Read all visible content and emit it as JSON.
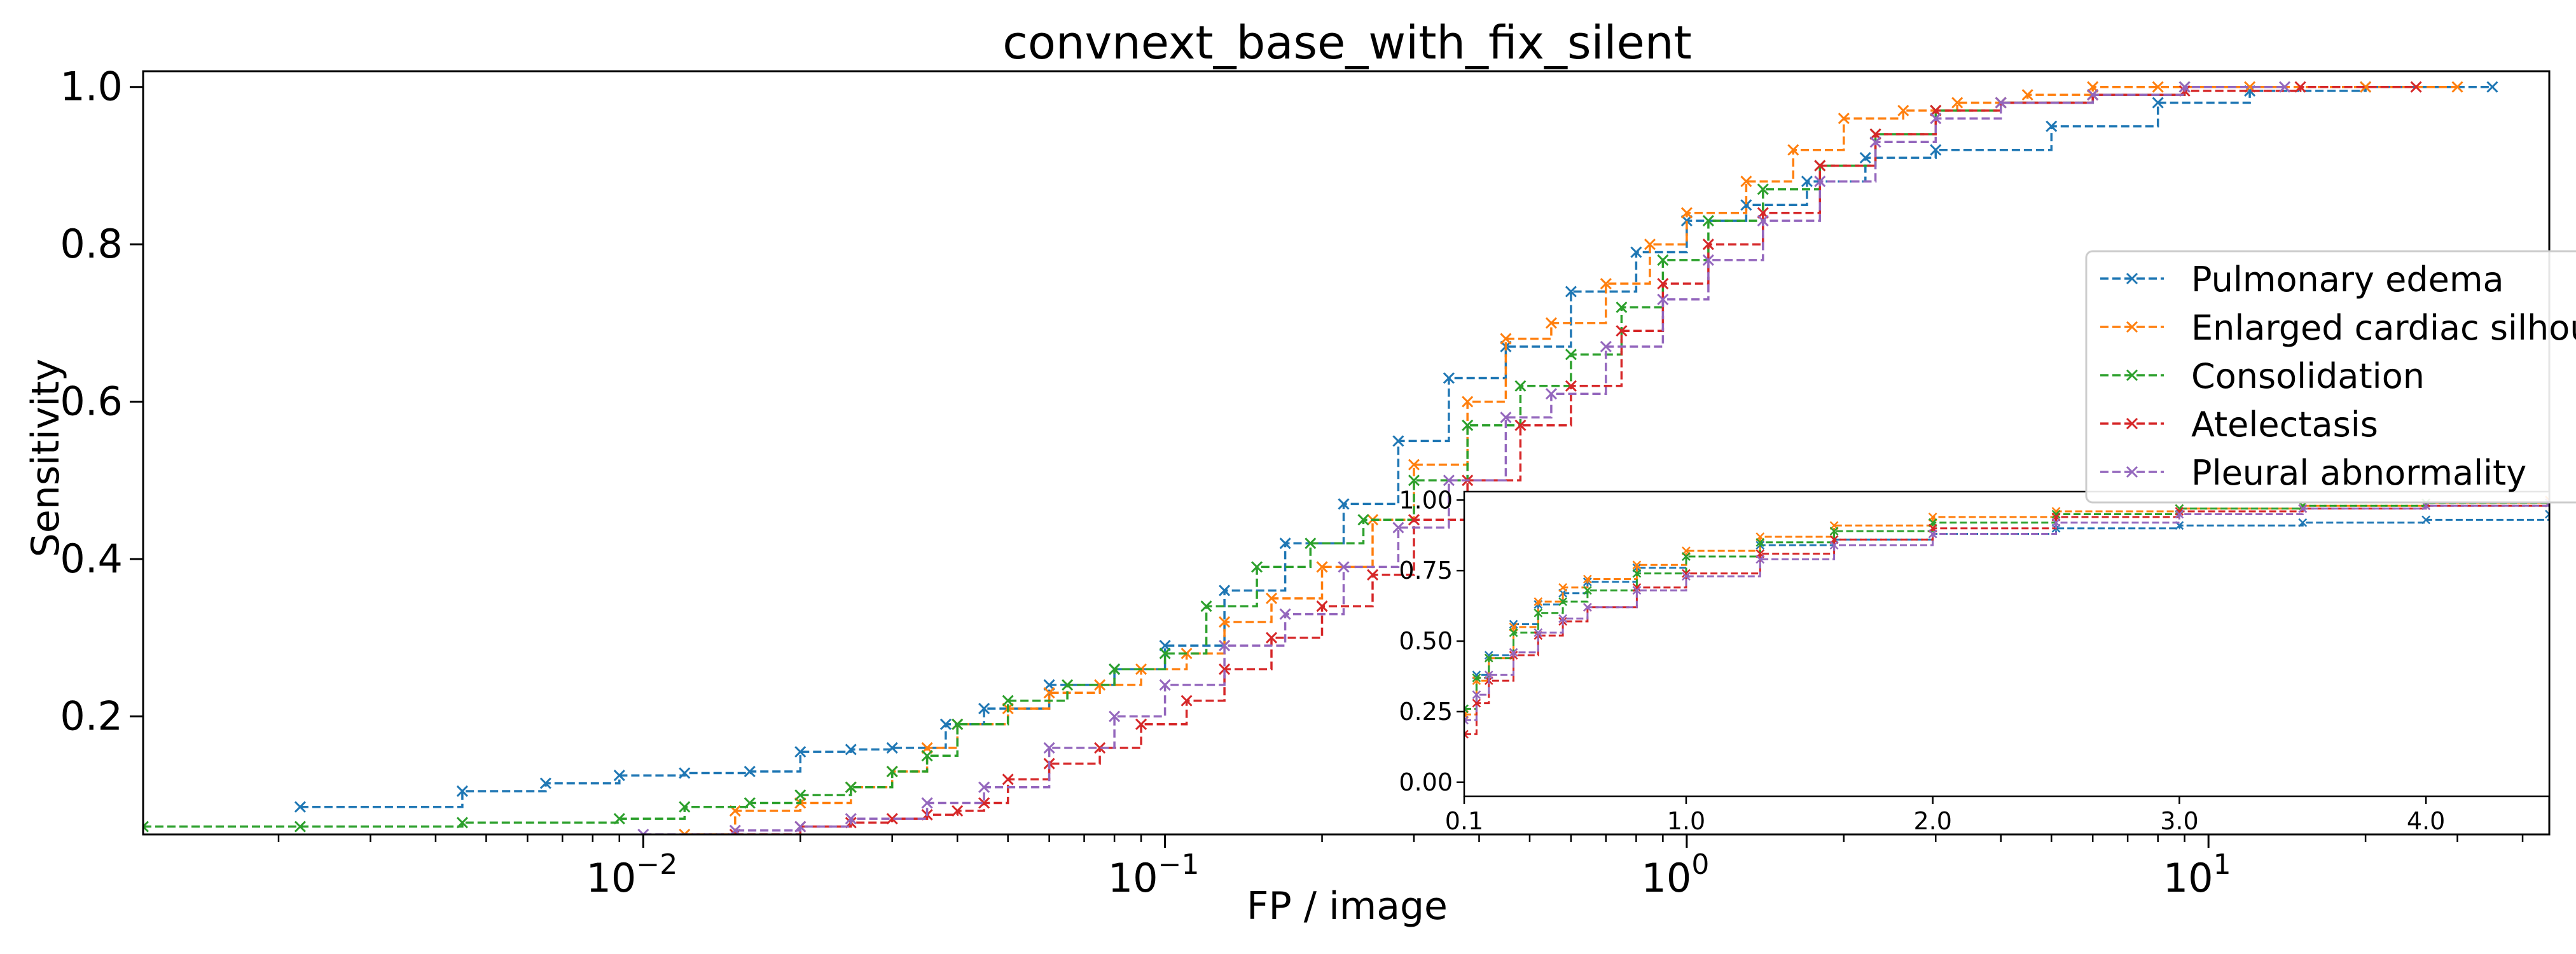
{
  "chart_data": [
    {
      "type": "line",
      "title": "convnext_base_with_fix_silent",
      "xlabel": "FP / image",
      "ylabel": "Sensitivity",
      "xscale": "log",
      "xlim": [
        0.0011,
        45
      ],
      "ylim": [
        0.05,
        1.02
      ],
      "x_ticks": [
        {
          "value": 0.01,
          "base": "10",
          "exp": "−2"
        },
        {
          "value": 0.1,
          "base": "10",
          "exp": "−1"
        },
        {
          "value": 1,
          "base": "10",
          "exp": "0"
        },
        {
          "value": 10,
          "base": "10",
          "exp": "1"
        }
      ],
      "y_ticks": [
        "0.2",
        "0.4",
        "0.6",
        "0.8",
        "1.0"
      ],
      "legend_position": "right",
      "series": [
        {
          "name": "Pulmonary edema",
          "color": "#1f77b4",
          "x": [
            0.0022,
            0.0045,
            0.0065,
            0.009,
            0.012,
            0.016,
            0.02,
            0.025,
            0.03,
            0.038,
            0.045,
            0.06,
            0.08,
            0.1,
            0.13,
            0.17,
            0.22,
            0.28,
            0.35,
            0.45,
            0.6,
            0.8,
            1.0,
            1.3,
            1.7,
            2.2,
            3.0,
            5.0,
            8.0,
            12.0,
            20.0,
            35.0
          ],
          "y": [
            0.085,
            0.105,
            0.115,
            0.125,
            0.128,
            0.13,
            0.155,
            0.158,
            0.16,
            0.19,
            0.21,
            0.24,
            0.26,
            0.29,
            0.36,
            0.42,
            0.47,
            0.55,
            0.63,
            0.67,
            0.74,
            0.79,
            0.83,
            0.85,
            0.88,
            0.91,
            0.92,
            0.95,
            0.98,
            0.995,
            1.0,
            1.0
          ]
        },
        {
          "name": "Enlarged cardiac silhouette",
          "color": "#ff7f0e",
          "x": [
            0.012,
            0.015,
            0.02,
            0.025,
            0.03,
            0.035,
            0.04,
            0.05,
            0.06,
            0.075,
            0.09,
            0.11,
            0.13,
            0.16,
            0.2,
            0.25,
            0.3,
            0.38,
            0.45,
            0.55,
            0.7,
            0.85,
            1.0,
            1.3,
            1.6,
            2.0,
            2.6,
            3.3,
            4.5,
            6.0,
            8.0,
            12.0,
            20.0,
            30.0
          ],
          "y": [
            0.05,
            0.08,
            0.09,
            0.11,
            0.13,
            0.16,
            0.19,
            0.21,
            0.23,
            0.24,
            0.26,
            0.28,
            0.32,
            0.35,
            0.39,
            0.45,
            0.52,
            0.6,
            0.68,
            0.7,
            0.75,
            0.8,
            0.84,
            0.88,
            0.92,
            0.96,
            0.97,
            0.98,
            0.99,
            1.0,
            1.0,
            1.0,
            1.0,
            1.0
          ]
        },
        {
          "name": "Consolidation",
          "color": "#2ca02c",
          "x": [
            0.0011,
            0.0022,
            0.0045,
            0.009,
            0.012,
            0.016,
            0.02,
            0.025,
            0.03,
            0.035,
            0.04,
            0.05,
            0.065,
            0.08,
            0.1,
            0.12,
            0.15,
            0.19,
            0.24,
            0.3,
            0.38,
            0.48,
            0.6,
            0.75,
            0.9,
            1.1,
            1.4,
            1.8,
            2.3,
            3.0,
            4.0,
            6.0,
            9.0
          ],
          "y": [
            0.06,
            0.06,
            0.065,
            0.07,
            0.085,
            0.09,
            0.1,
            0.11,
            0.13,
            0.15,
            0.19,
            0.22,
            0.24,
            0.26,
            0.28,
            0.34,
            0.39,
            0.42,
            0.45,
            0.5,
            0.57,
            0.62,
            0.66,
            0.72,
            0.78,
            0.83,
            0.87,
            0.9,
            0.94,
            0.97,
            0.98,
            0.99,
            1.0
          ]
        },
        {
          "name": "Atelectasis",
          "color": "#d62728",
          "x": [
            0.015,
            0.02,
            0.025,
            0.03,
            0.035,
            0.04,
            0.045,
            0.05,
            0.06,
            0.075,
            0.09,
            0.11,
            0.13,
            0.16,
            0.2,
            0.25,
            0.3,
            0.38,
            0.48,
            0.6,
            0.75,
            0.9,
            1.1,
            1.4,
            1.8,
            2.3,
            3.0,
            4.0,
            6.0,
            9.0,
            15.0,
            25.0
          ],
          "y": [
            0.05,
            0.06,
            0.065,
            0.07,
            0.075,
            0.08,
            0.09,
            0.12,
            0.14,
            0.16,
            0.19,
            0.22,
            0.26,
            0.3,
            0.34,
            0.38,
            0.45,
            0.5,
            0.57,
            0.62,
            0.69,
            0.75,
            0.8,
            0.84,
            0.9,
            0.94,
            0.97,
            0.98,
            0.99,
            0.995,
            1.0,
            1.0
          ]
        },
        {
          "name": "Pleural abnormality",
          "color": "#9467bd",
          "x": [
            0.01,
            0.015,
            0.02,
            0.025,
            0.035,
            0.045,
            0.06,
            0.08,
            0.1,
            0.13,
            0.17,
            0.22,
            0.28,
            0.35,
            0.45,
            0.55,
            0.7,
            0.9,
            1.1,
            1.4,
            1.8,
            2.3,
            3.0,
            4.0,
            6.0,
            9.0,
            14.0
          ],
          "y": [
            0.05,
            0.055,
            0.06,
            0.07,
            0.09,
            0.11,
            0.16,
            0.2,
            0.24,
            0.29,
            0.33,
            0.39,
            0.44,
            0.5,
            0.58,
            0.61,
            0.67,
            0.73,
            0.78,
            0.83,
            0.88,
            0.93,
            0.96,
            0.98,
            0.99,
            1.0,
            1.0
          ]
        }
      ]
    },
    {
      "type": "line",
      "title": "",
      "xscale": "linear",
      "xlim": [
        0.1,
        4.5
      ],
      "ylim": [
        -0.05,
        1.03
      ],
      "x_ticks": [
        "0.1",
        "1.0",
        "2.0",
        "3.0",
        "4.0"
      ],
      "y_ticks": [
        "0.00",
        "0.25",
        "0.50",
        "0.75",
        "1.00"
      ],
      "series": [
        {
          "color": "#1f77b4",
          "x": [
            0.1,
            0.15,
            0.2,
            0.3,
            0.4,
            0.5,
            0.6,
            0.8,
            1.0,
            1.3,
            1.6,
            2.0,
            2.5,
            3.0,
            3.5,
            4.0,
            4.5
          ],
          "y": [
            0.26,
            0.38,
            0.45,
            0.56,
            0.63,
            0.67,
            0.71,
            0.76,
            0.8,
            0.84,
            0.86,
            0.88,
            0.9,
            0.91,
            0.92,
            0.93,
            0.95
          ]
        },
        {
          "color": "#ff7f0e",
          "x": [
            0.1,
            0.15,
            0.2,
            0.3,
            0.4,
            0.5,
            0.6,
            0.8,
            1.0,
            1.3,
            1.6,
            2.0,
            2.5,
            3.0,
            3.5,
            4.0,
            4.5
          ],
          "y": [
            0.24,
            0.36,
            0.44,
            0.55,
            0.64,
            0.69,
            0.72,
            0.77,
            0.82,
            0.87,
            0.91,
            0.94,
            0.96,
            0.97,
            0.98,
            0.99,
            1.0
          ]
        },
        {
          "color": "#2ca02c",
          "x": [
            0.1,
            0.15,
            0.2,
            0.3,
            0.4,
            0.5,
            0.6,
            0.8,
            1.0,
            1.3,
            1.6,
            2.0,
            2.5,
            3.0,
            3.5,
            4.0,
            4.5
          ],
          "y": [
            0.26,
            0.37,
            0.44,
            0.53,
            0.6,
            0.64,
            0.68,
            0.74,
            0.8,
            0.85,
            0.89,
            0.92,
            0.95,
            0.97,
            0.98,
            0.99,
            0.99
          ]
        },
        {
          "color": "#d62728",
          "x": [
            0.1,
            0.15,
            0.2,
            0.3,
            0.4,
            0.5,
            0.6,
            0.8,
            1.0,
            1.3,
            1.6,
            2.0,
            2.5,
            3.0,
            3.5,
            4.0,
            4.5
          ],
          "y": [
            0.17,
            0.28,
            0.36,
            0.45,
            0.52,
            0.57,
            0.62,
            0.69,
            0.74,
            0.81,
            0.86,
            0.9,
            0.94,
            0.96,
            0.97,
            0.98,
            0.99
          ]
        },
        {
          "color": "#9467bd",
          "x": [
            0.1,
            0.15,
            0.2,
            0.3,
            0.4,
            0.5,
            0.6,
            0.8,
            1.0,
            1.3,
            1.6,
            2.0,
            2.5,
            3.0,
            3.5,
            4.0,
            4.5
          ],
          "y": [
            0.22,
            0.31,
            0.38,
            0.46,
            0.53,
            0.58,
            0.62,
            0.68,
            0.73,
            0.79,
            0.84,
            0.88,
            0.92,
            0.95,
            0.97,
            0.98,
            0.99
          ]
        }
      ]
    }
  ]
}
